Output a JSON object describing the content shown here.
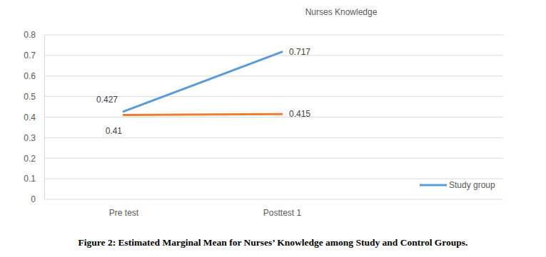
{
  "chart_data": {
    "type": "line",
    "title": "Nurses Knowledge",
    "caption": "Figure 2: Estimated Marginal Mean for Nurses’ Knowledge among Study and Control Groups.",
    "categories": [
      "Pre test",
      "Posttest 1"
    ],
    "series": [
      {
        "name": "Study group",
        "color": "#5b9bd5",
        "values": [
          0.427,
          0.717
        ]
      },
      {
        "color": "#ed7d31",
        "values": [
          0.41,
          0.415
        ]
      }
    ],
    "ylim": [
      0,
      0.8
    ],
    "yticks": [
      0,
      0.1,
      0.2,
      0.3,
      0.4,
      0.5,
      0.6,
      0.7,
      0.8
    ],
    "grid": true,
    "legend": "bottom-right",
    "data_labels": true
  }
}
